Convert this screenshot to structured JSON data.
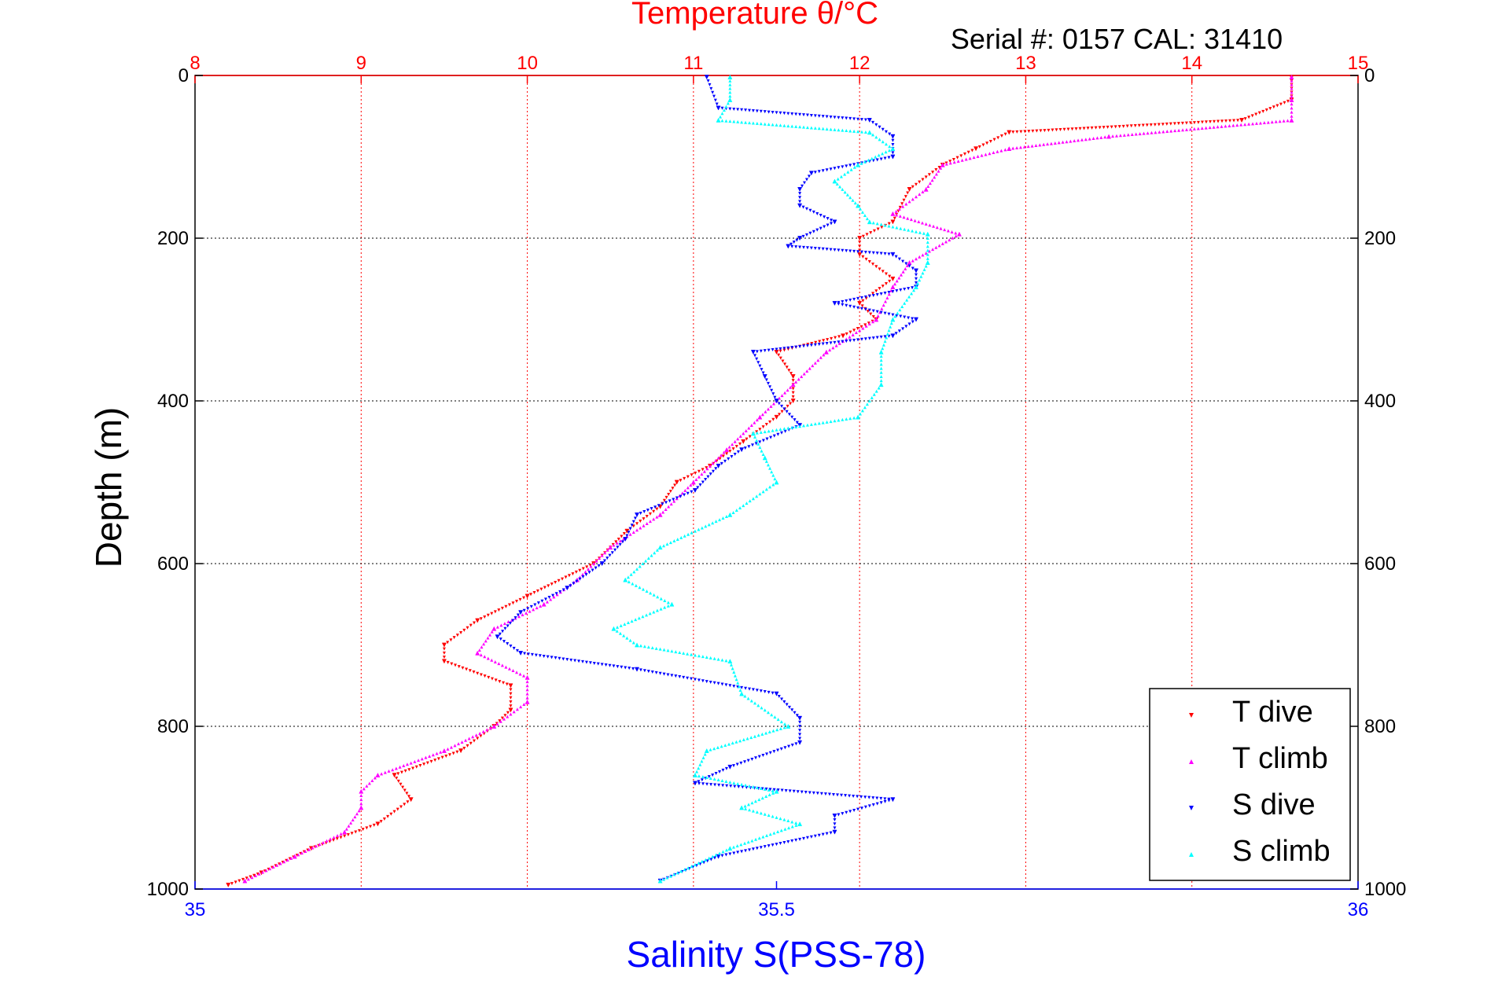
{
  "chart_data": {
    "type": "scatter",
    "title": "Temperature θ/°C",
    "subtitle": "Serial #: 0157  CAL: 31410",
    "xlabel": "Salinity S(PSS-78)",
    "ylabel": "Depth (m)",
    "top_axis": {
      "range": [
        8,
        15
      ],
      "ticks": [
        "8",
        "9",
        "10",
        "11",
        "12",
        "13",
        "14",
        "15"
      ],
      "color": "#ff0000"
    },
    "bottom_axis": {
      "range": [
        35,
        36
      ],
      "ticks": [
        "35",
        "35.5",
        "36"
      ],
      "color": "#0000ff"
    },
    "depth_axis": {
      "range": [
        0,
        1000
      ],
      "reversed": true,
      "ticks": [
        "0",
        "200",
        "400",
        "600",
        "800",
        "1000"
      ]
    },
    "grid": true,
    "legend_position": "bottom-right",
    "series": [
      {
        "name": "T dive",
        "axis": "temperature",
        "marker": "triangle-down",
        "color": "#ff0000",
        "depth": [
          2,
          30,
          55,
          70,
          90,
          110,
          140,
          180,
          200,
          220,
          250,
          280,
          300,
          320,
          340,
          370,
          400,
          420,
          450,
          480,
          500,
          530,
          560,
          600,
          640,
          670,
          700,
          720,
          750,
          780,
          800,
          830,
          860,
          890,
          920,
          950,
          980,
          995
        ],
        "values": [
          14.6,
          14.6,
          14.3,
          12.9,
          12.7,
          12.5,
          12.3,
          12.2,
          12.0,
          12.0,
          12.2,
          12.0,
          12.1,
          11.9,
          11.5,
          11.6,
          11.6,
          11.5,
          11.3,
          11.1,
          10.9,
          10.8,
          10.6,
          10.4,
          10.0,
          9.7,
          9.5,
          9.5,
          9.9,
          9.9,
          9.8,
          9.6,
          9.2,
          9.3,
          9.1,
          8.7,
          8.4,
          8.2
        ]
      },
      {
        "name": "T climb",
        "axis": "temperature",
        "marker": "triangle-up",
        "color": "#ff00ff",
        "depth": [
          2,
          30,
          55,
          75,
          90,
          110,
          140,
          170,
          195,
          230,
          260,
          300,
          340,
          380,
          420,
          460,
          500,
          540,
          580,
          620,
          650,
          680,
          710,
          740,
          770,
          800,
          830,
          860,
          880,
          900,
          930,
          960,
          990
        ],
        "values": [
          14.6,
          14.6,
          14.6,
          13.5,
          12.9,
          12.5,
          12.4,
          12.2,
          12.6,
          12.3,
          12.2,
          12.1,
          11.8,
          11.6,
          11.4,
          11.2,
          11.0,
          10.8,
          10.5,
          10.3,
          10.1,
          9.8,
          9.7,
          10.0,
          10.0,
          9.8,
          9.5,
          9.1,
          9.0,
          9.0,
          8.9,
          8.6,
          8.3
        ]
      },
      {
        "name": "S dive",
        "axis": "salinity",
        "marker": "triangle-down",
        "color": "#0000ff",
        "depth": [
          2,
          40,
          55,
          75,
          100,
          120,
          140,
          160,
          180,
          200,
          210,
          220,
          240,
          260,
          280,
          300,
          320,
          340,
          370,
          400,
          430,
          460,
          480,
          510,
          540,
          570,
          600,
          630,
          660,
          690,
          710,
          730,
          760,
          790,
          820,
          850,
          870,
          890,
          910,
          930,
          960,
          990
        ],
        "values": [
          35.44,
          35.45,
          35.58,
          35.6,
          35.6,
          35.53,
          35.52,
          35.52,
          35.55,
          35.52,
          35.51,
          35.6,
          35.62,
          35.62,
          35.55,
          35.62,
          35.6,
          35.48,
          35.49,
          35.5,
          35.52,
          35.47,
          35.45,
          35.43,
          35.38,
          35.37,
          35.35,
          35.32,
          35.28,
          35.26,
          35.28,
          35.38,
          35.5,
          35.52,
          35.52,
          35.46,
          35.43,
          35.6,
          35.55,
          35.55,
          35.45,
          35.4
        ]
      },
      {
        "name": "S climb",
        "axis": "salinity",
        "marker": "triangle-up",
        "color": "#00ffff",
        "depth": [
          2,
          30,
          55,
          70,
          90,
          110,
          130,
          160,
          180,
          195,
          230,
          260,
          300,
          340,
          380,
          420,
          440,
          470,
          500,
          540,
          580,
          620,
          650,
          680,
          700,
          720,
          760,
          800,
          830,
          860,
          880,
          900,
          920,
          950,
          990
        ],
        "values": [
          35.46,
          35.46,
          35.45,
          35.58,
          35.6,
          35.57,
          35.55,
          35.57,
          35.58,
          35.63,
          35.63,
          35.62,
          35.6,
          35.59,
          35.59,
          35.57,
          35.48,
          35.49,
          35.5,
          35.46,
          35.4,
          35.37,
          35.41,
          35.36,
          35.38,
          35.46,
          35.47,
          35.51,
          35.44,
          35.43,
          35.5,
          35.47,
          35.52,
          35.46,
          35.4
        ]
      }
    ]
  }
}
